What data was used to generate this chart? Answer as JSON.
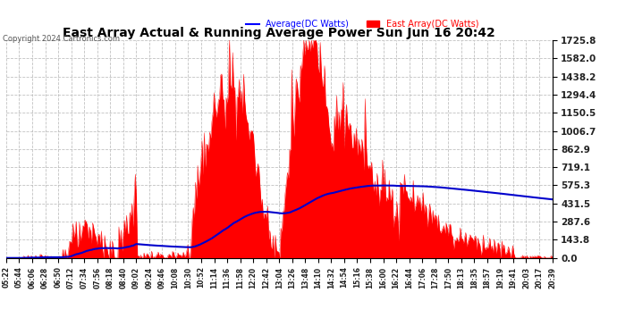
{
  "title": "East Array Actual & Running Average Power Sun Jun 16 20:42",
  "copyright": "Copyright 2024 Cartronics.com",
  "legend_avg": "Average(DC Watts)",
  "legend_east": "East Array(DC Watts)",
  "ymin": 0.0,
  "ymax": 1725.8,
  "yticks": [
    0.0,
    143.8,
    287.6,
    431.5,
    575.3,
    719.1,
    862.9,
    1006.7,
    1150.5,
    1294.4,
    1438.2,
    1582.0,
    1725.8
  ],
  "bg_color": "#ffffff",
  "plot_bg_color": "#ffffff",
  "grid_color": "#bbbbbb",
  "fill_color": "#ff0000",
  "line_color": "#0000cc",
  "title_color": "#000000",
  "copyright_color": "#555555",
  "legend_avg_color": "#0000ff",
  "legend_east_color": "#ff0000",
  "xtick_labels": [
    "05:22",
    "05:44",
    "06:06",
    "06:28",
    "06:50",
    "07:12",
    "07:34",
    "07:56",
    "08:18",
    "08:40",
    "09:02",
    "09:24",
    "09:46",
    "10:08",
    "10:30",
    "10:52",
    "11:14",
    "11:36",
    "11:58",
    "12:20",
    "12:42",
    "13:04",
    "13:26",
    "13:48",
    "14:10",
    "14:32",
    "14:54",
    "15:16",
    "15:38",
    "16:00",
    "16:22",
    "16:44",
    "17:06",
    "17:28",
    "17:50",
    "18:13",
    "18:35",
    "18:57",
    "19:19",
    "19:41",
    "20:03",
    "20:17",
    "20:39"
  ]
}
